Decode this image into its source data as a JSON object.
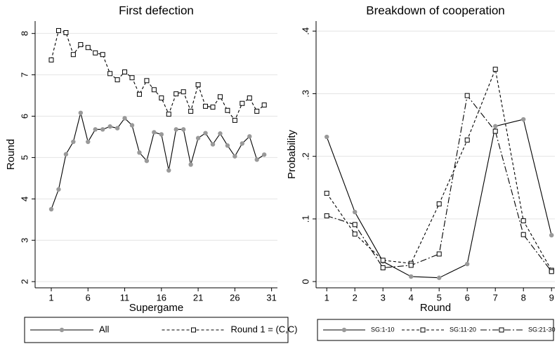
{
  "chart_data": [
    {
      "type": "line",
      "title": "First defection",
      "x_label": "Supergame",
      "y_label": "Round",
      "x": [
        1,
        2,
        3,
        4,
        5,
        6,
        7,
        8,
        9,
        10,
        11,
        12,
        13,
        14,
        15,
        16,
        17,
        18,
        19,
        20,
        21,
        22,
        23,
        24,
        25,
        26,
        27,
        28,
        29,
        30
      ],
      "series": [
        {
          "name": "All",
          "color": "#999999",
          "line_color": "#000000",
          "dash": "solid",
          "marker": "circle",
          "values": [
            3.75,
            4.23,
            5.08,
            5.38,
            6.08,
            5.38,
            5.68,
            5.68,
            5.75,
            5.71,
            5.95,
            5.78,
            5.12,
            4.92,
            5.61,
            5.56,
            4.69,
            5.68,
            5.68,
            4.83,
            5.47,
            5.59,
            5.32,
            5.58,
            5.29,
            5.03,
            5.34,
            5.51,
            4.95,
            5.07
          ]
        },
        {
          "name": "Round 1 = (C,C)",
          "color": "#000000",
          "line_color": "#000000",
          "dash": "dashed",
          "marker": "square",
          "values": [
            7.36,
            8.07,
            8.02,
            7.49,
            7.73,
            7.66,
            7.53,
            7.49,
            7.03,
            6.88,
            7.07,
            6.93,
            6.53,
            6.86,
            6.64,
            6.44,
            6.05,
            6.54,
            6.59,
            6.12,
            6.76,
            6.24,
            6.22,
            6.47,
            6.14,
            5.9,
            6.31,
            6.44,
            6.12,
            6.27
          ]
        }
      ],
      "xlim": [
        -1.2,
        31.8
      ],
      "xticks": [
        1,
        6,
        11,
        16,
        21,
        26,
        31
      ],
      "ylim": [
        1.85,
        8.3
      ],
      "yticks": [
        2,
        3,
        4,
        5,
        6,
        7,
        8
      ],
      "grid": true,
      "legend": "bottom"
    },
    {
      "type": "line",
      "title": "Breakdown of cooperation",
      "x_label": "Round",
      "y_label": "Probability",
      "x": [
        1,
        2,
        3,
        4,
        5,
        6,
        7,
        8,
        9
      ],
      "series": [
        {
          "name": "SG:1-10",
          "color": "#999999",
          "line_color": "#000000",
          "dash": "solid",
          "marker": "circle",
          "values": [
            0.231,
            0.111,
            0.032,
            0.008,
            0.006,
            0.028,
            0.248,
            0.259,
            0.074
          ]
        },
        {
          "name": "SG:11-20",
          "color": "#000000",
          "line_color": "#000000",
          "dash": "dashed",
          "marker": "square",
          "values": [
            0.141,
            0.076,
            0.034,
            0.029,
            0.124,
            0.226,
            0.339,
            0.097,
            0.018
          ]
        },
        {
          "name": "SG:21-30",
          "color": "#000000",
          "line_color": "#000000",
          "dash": "dashdot",
          "marker": "square",
          "values": [
            0.105,
            0.091,
            0.022,
            0.026,
            0.044,
            0.297,
            0.24,
            0.075,
            0.016
          ]
        }
      ],
      "xlim": [
        0.62,
        9.12
      ],
      "xticks": [
        1,
        2,
        3,
        4,
        5,
        6,
        7,
        8,
        9
      ],
      "ylim": [
        -0.01,
        0.416
      ],
      "yticks": [
        0,
        {
          "value": 0.1,
          "label": ".1"
        },
        {
          "value": 0.2,
          "label": ".2"
        },
        {
          "value": 0.3,
          "label": ".3"
        },
        {
          "value": 0.4,
          "label": ".4"
        }
      ],
      "grid": true,
      "legend": "bottom"
    }
  ]
}
